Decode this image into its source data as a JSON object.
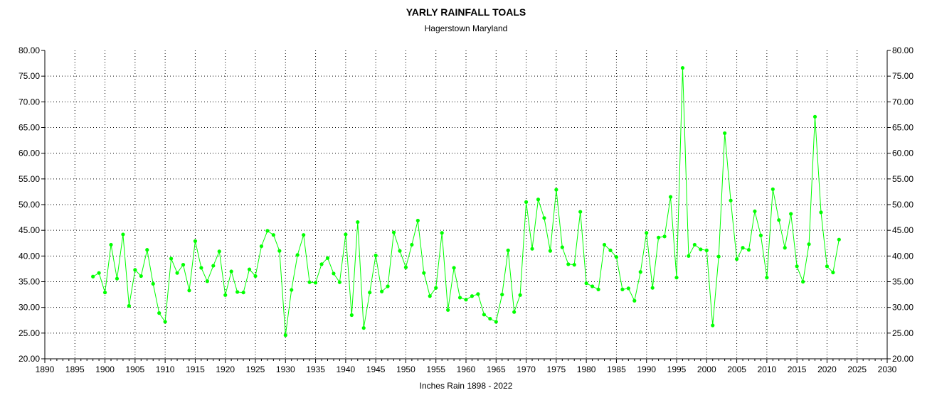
{
  "chart_data": {
    "type": "line",
    "title": "YARLY RAINFALL TOALS",
    "subtitle": "Hagerstown Maryland",
    "xlabel": "Inches Rain 1898 - 2022",
    "ylabel": "",
    "xlim": [
      1890,
      2030
    ],
    "ylim": [
      20,
      80
    ],
    "x_tick_step": 5,
    "x_minor_step": 1,
    "y_tick_step": 5,
    "y_tick_decimals": 2,
    "grid": true,
    "marker": "circle",
    "colors": {
      "series": "#00ff00",
      "grid": "#000000",
      "axis": "#000000"
    },
    "series": [
      {
        "x": [
          1898,
          1899,
          1900,
          1901,
          1902,
          1903,
          1904,
          1905,
          1906,
          1907,
          1908,
          1909,
          1910,
          1911,
          1912,
          1913,
          1914,
          1915,
          1916,
          1917,
          1918,
          1919,
          1920,
          1921,
          1922,
          1923,
          1924,
          1925,
          1926,
          1927,
          1928,
          1929,
          1930,
          1931,
          1932,
          1933,
          1934,
          1935,
          1936,
          1937,
          1938,
          1939,
          1940,
          1941,
          1942,
          1943,
          1944,
          1945,
          1946,
          1947,
          1948,
          1949,
          1950,
          1951,
          1952,
          1953,
          1954,
          1955,
          1956,
          1957,
          1958,
          1959,
          1960,
          1961,
          1962,
          1963,
          1964,
          1965,
          1966,
          1967,
          1968,
          1969,
          1970,
          1971,
          1972,
          1973,
          1974,
          1975,
          1976,
          1977,
          1978,
          1979,
          1980,
          1981,
          1982,
          1983,
          1984,
          1985,
          1986,
          1987,
          1988,
          1989,
          1990,
          1991,
          1992,
          1993,
          1994,
          1995,
          1996,
          1997,
          1998,
          1999,
          2000,
          2001,
          2002,
          2003,
          2004,
          2005,
          2006,
          2007,
          2008,
          2009,
          2010,
          2011,
          2012,
          2013,
          2014,
          2015,
          2016,
          2017,
          2018,
          2019,
          2020,
          2021,
          2022
        ],
        "values": [
          36.0,
          36.7,
          32.9,
          42.2,
          35.6,
          44.2,
          30.3,
          37.3,
          36.1,
          41.2,
          34.6,
          28.9,
          27.2,
          39.5,
          36.7,
          38.3,
          33.3,
          42.9,
          37.7,
          35.1,
          38.1,
          40.9,
          32.4,
          37.0,
          33.0,
          32.9,
          37.4,
          36.1,
          41.9,
          44.9,
          44.1,
          41.0,
          24.6,
          33.4,
          40.2,
          44.1,
          34.9,
          34.8,
          38.4,
          39.6,
          36.6,
          34.9,
          44.2,
          28.5,
          46.6,
          26.0,
          32.9,
          40.1,
          33.1,
          34.1,
          44.6,
          41.0,
          37.8,
          42.2,
          46.9,
          36.7,
          32.2,
          33.8,
          44.5,
          29.5,
          37.7,
          31.9,
          31.5,
          32.2,
          32.6,
          28.6,
          27.8,
          27.2,
          32.5,
          41.1,
          29.1,
          32.4,
          50.5,
          41.4,
          51.0,
          47.4,
          41.0,
          52.9,
          41.7,
          38.4,
          38.3,
          48.6,
          34.7,
          34.1,
          33.5,
          42.2,
          41.1,
          39.8,
          33.5,
          33.7,
          31.3,
          36.9,
          44.5,
          33.8,
          43.6,
          43.8,
          51.5,
          35.8,
          76.6,
          40.0,
          42.2,
          41.3,
          41.1,
          26.5,
          39.9,
          63.9,
          50.8,
          39.4,
          41.6,
          41.2,
          48.7,
          44.0,
          35.8,
          53.0,
          47.0,
          41.6,
          48.2,
          38.0,
          35.0,
          42.3,
          67.1,
          48.5,
          38.0,
          36.8,
          43.2
        ]
      }
    ]
  }
}
